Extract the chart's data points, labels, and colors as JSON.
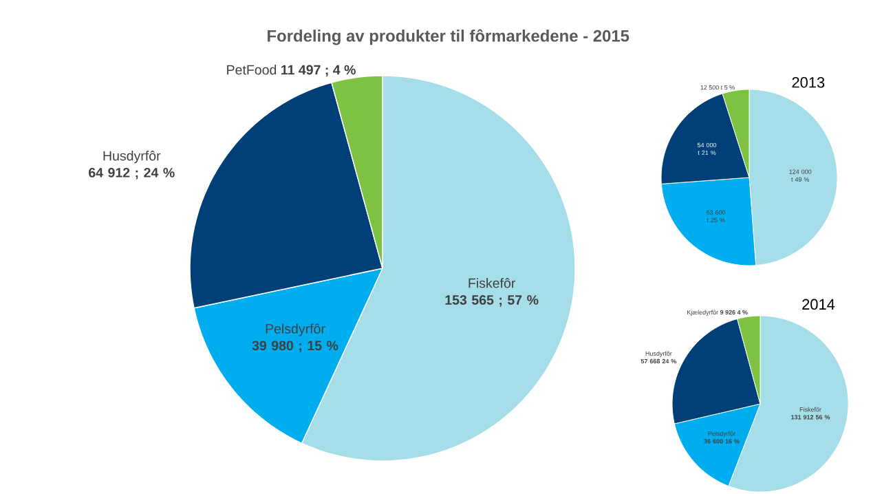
{
  "chart_data": [
    {
      "type": "pie",
      "title": "Fordeling av produkter til fôrmarkedene - 2015",
      "categories": [
        "Fiskefôr",
        "Pelsdyrfôr",
        "Husdyrfôr",
        "PetFood"
      ],
      "values": [
        153565,
        39980,
        64912,
        11497
      ],
      "colors": [
        "#a5dde8",
        "#00adef",
        "#003f77",
        "#7dc242"
      ],
      "value_labels": [
        "153 565 ; 57 %",
        "39 980 ; 15 %",
        "64 912 ; 24 %",
        "11 497 ; 4 %"
      ]
    },
    {
      "type": "pie",
      "title": "2013",
      "categories": [
        null,
        null,
        null,
        null
      ],
      "values": [
        124000,
        63600,
        54000,
        12500
      ],
      "colors": [
        "#a5dde8",
        "#00adef",
        "#003f77",
        "#7dc242"
      ],
      "value_labels": [
        "124 000 t 49 %",
        "63 600 t 25 %",
        "54 000 t 21 %",
        "12 500 t 5 %"
      ]
    },
    {
      "type": "pie",
      "title": "2014",
      "categories": [
        "Fiskefôr",
        "Pelsdyrfôr",
        "Husdyrfôr",
        "Kjæledyrfôr"
      ],
      "values": [
        131912,
        36600,
        57668,
        9926
      ],
      "colors": [
        "#a5dde8",
        "#00adef",
        "#003f77",
        "#7dc242"
      ],
      "value_labels": [
        "131 912 56 %",
        "36 600 16 %",
        "57 668 24 %",
        "9 926 4 %"
      ]
    }
  ]
}
